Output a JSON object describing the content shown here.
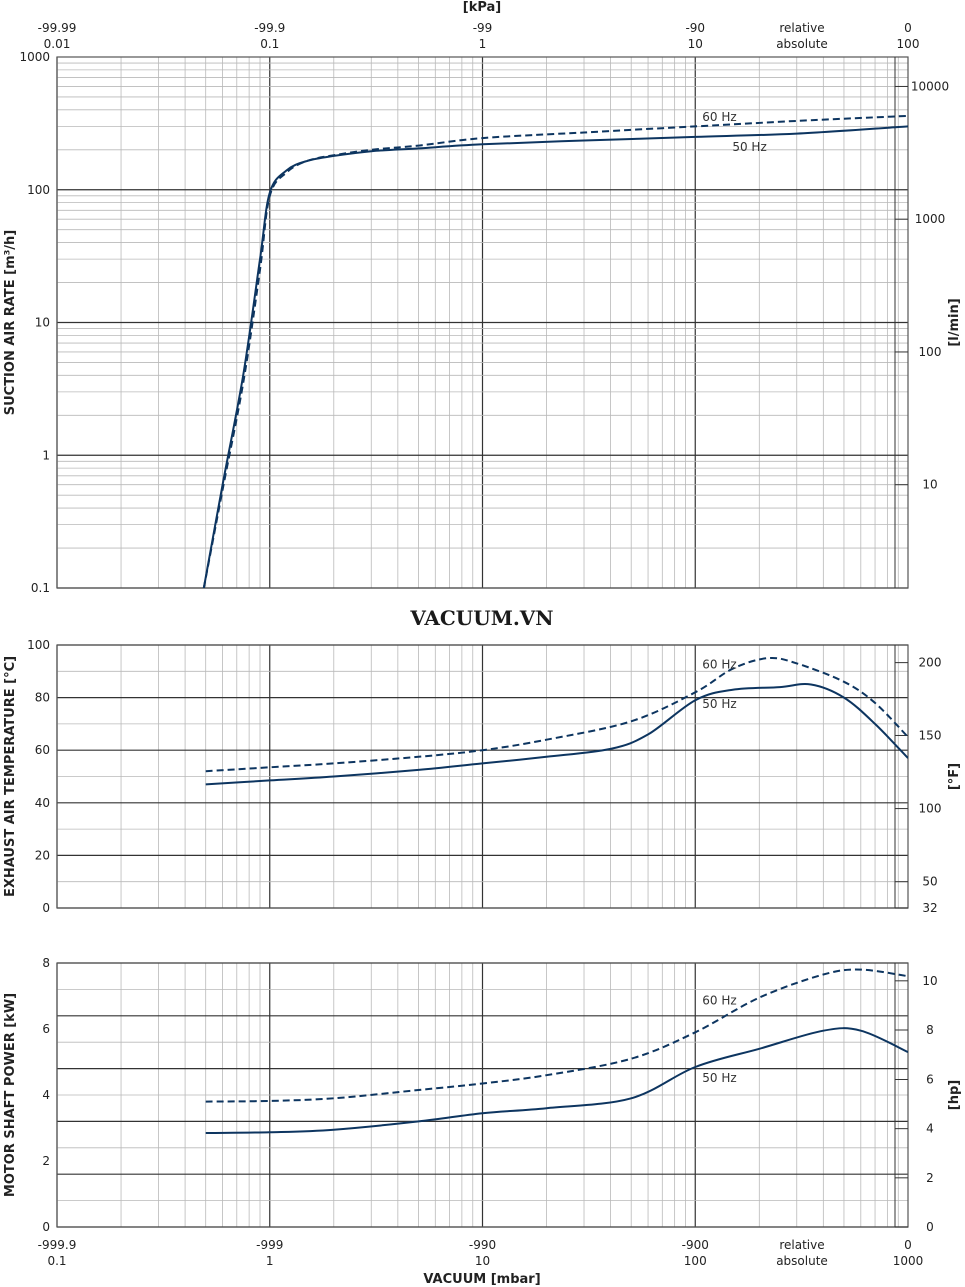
{
  "watermark": "VACUUM.VN",
  "colors": {
    "curve": "#0d3560",
    "grid_minor": "#b9b9b9",
    "grid_major": "#333333",
    "frame": "#555555"
  },
  "top_axis": {
    "unit": "[kPa]",
    "relative_ticks": [
      {
        "x": 0.01,
        "label": "-99.99"
      },
      {
        "x": 0.1,
        "label": "-99.9"
      },
      {
        "x": 1,
        "label": "-99"
      },
      {
        "x": 10,
        "label": "-90"
      },
      {
        "x": 100,
        "label": "0"
      }
    ],
    "absolute_ticks": [
      {
        "x": 0.01,
        "label": "0.01"
      },
      {
        "x": 0.1,
        "label": "0.1"
      },
      {
        "x": 1,
        "label": "1"
      },
      {
        "x": 10,
        "label": "10"
      },
      {
        "x": 100,
        "label": "100"
      }
    ],
    "relative_label": "relative",
    "absolute_label": "absolute"
  },
  "bottom_axis": {
    "title": "VACUUM [mbar]",
    "relative_ticks": [
      {
        "x": 0.1,
        "label": "-999.9"
      },
      {
        "x": 1,
        "label": "-999"
      },
      {
        "x": 10,
        "label": "-990"
      },
      {
        "x": 100,
        "label": "-900"
      },
      {
        "x": 1000,
        "label": "0"
      }
    ],
    "absolute_ticks": [
      {
        "x": 0.1,
        "label": "0.1"
      },
      {
        "x": 1,
        "label": "1"
      },
      {
        "x": 10,
        "label": "10"
      },
      {
        "x": 100,
        "label": "100"
      },
      {
        "x": 1000,
        "label": "1000"
      }
    ],
    "relative_label": "relative",
    "absolute_label": "absolute"
  },
  "chart_data": [
    {
      "type": "line",
      "id": "suction",
      "ylabel": "SUCTION AIR RATE [m³/h]",
      "ylabel_right": "[l/min]",
      "x_scale": "log",
      "y_scale": "log",
      "xlim": [
        0.1,
        1000
      ],
      "ylim": [
        0.1,
        1000
      ],
      "yticks": [
        {
          "v": 0.1,
          "label": "0.1"
        },
        {
          "v": 1,
          "label": "1"
        },
        {
          "v": 10,
          "label": "10"
        },
        {
          "v": 100,
          "label": "100"
        },
        {
          "v": 1000,
          "label": "1000"
        }
      ],
      "yticks_right": [
        {
          "v": 0.6,
          "label": "10"
        },
        {
          "v": 6,
          "label": "100"
        },
        {
          "v": 60,
          "label": "1000"
        },
        {
          "v": 600,
          "label": "10000"
        }
      ],
      "series": [
        {
          "name": "50 Hz",
          "style": "solid",
          "x": [
            0.49,
            0.6,
            0.75,
            0.9,
            1.0,
            1.2,
            1.5,
            2,
            3,
            5,
            10,
            30,
            100,
            300,
            1000
          ],
          "y": [
            0.1,
            0.6,
            4,
            30,
            95,
            140,
            165,
            180,
            195,
            205,
            220,
            235,
            250,
            265,
            300
          ],
          "label_at": {
            "x": 180,
            "y": 195
          }
        },
        {
          "name": "60 Hz",
          "style": "dashed",
          "x": [
            0.49,
            0.6,
            0.75,
            0.9,
            1.0,
            1.2,
            1.5,
            2,
            3,
            5,
            10,
            30,
            100,
            300,
            1000
          ],
          "y": [
            0.1,
            0.55,
            3.5,
            25,
            90,
            135,
            165,
            182,
            200,
            215,
            245,
            270,
            300,
            330,
            360
          ],
          "label_at": {
            "x": 130,
            "y": 330
          }
        }
      ]
    },
    {
      "type": "line",
      "id": "temperature",
      "ylabel": "EXHAUST AIR TEMPERATURE [°C]",
      "ylabel_right": "[°F]",
      "x_scale": "log",
      "y_scale": "linear",
      "xlim": [
        0.1,
        1000
      ],
      "ylim": [
        0,
        100
      ],
      "yticks": [
        {
          "v": 0,
          "label": "0"
        },
        {
          "v": 20,
          "label": "20"
        },
        {
          "v": 40,
          "label": "40"
        },
        {
          "v": 60,
          "label": "60"
        },
        {
          "v": 80,
          "label": "80"
        },
        {
          "v": 100,
          "label": "100"
        }
      ],
      "yticks_right": [
        {
          "v": 0,
          "label": "32"
        },
        {
          "v": 10,
          "label": "50"
        },
        {
          "v": 37.8,
          "label": "100"
        },
        {
          "v": 65.6,
          "label": "150"
        },
        {
          "v": 93.3,
          "label": "200"
        }
      ],
      "series": [
        {
          "name": "50 Hz",
          "style": "solid",
          "x": [
            0.5,
            1,
            2,
            5,
            10,
            20,
            40,
            60,
            100,
            150,
            250,
            350,
            500,
            700,
            1000
          ],
          "y": [
            47,
            48.5,
            50,
            52.5,
            55,
            57.5,
            60.5,
            66,
            79,
            83,
            84,
            85,
            80,
            70,
            57
          ],
          "label_at": {
            "x": 130,
            "y": 76
          }
        },
        {
          "name": "60 Hz",
          "style": "dashed",
          "x": [
            0.5,
            1,
            2,
            5,
            10,
            20,
            50,
            100,
            150,
            220,
            300,
            500,
            700,
            1000
          ],
          "y": [
            52,
            53.5,
            55,
            57.5,
            60,
            64,
            71,
            82,
            91,
            95,
            93,
            86,
            78,
            65
          ],
          "label_at": {
            "x": 130,
            "y": 91
          }
        }
      ]
    },
    {
      "type": "line",
      "id": "power",
      "ylabel": "MOTOR SHAFT POWER [kW]",
      "ylabel_right": "[hp]",
      "x_scale": "log",
      "y_scale": "linear",
      "xlim": [
        0.1,
        1000
      ],
      "ylim": [
        0,
        8
      ],
      "yticks": [
        {
          "v": 0,
          "label": "0"
        },
        {
          "v": 2,
          "label": "2"
        },
        {
          "v": 4,
          "label": "4"
        },
        {
          "v": 6,
          "label": "6"
        },
        {
          "v": 8,
          "label": "8"
        }
      ],
      "yticks_right": [
        {
          "v": 0,
          "label": "0"
        },
        {
          "v": 1.49,
          "label": "2"
        },
        {
          "v": 2.98,
          "label": "4"
        },
        {
          "v": 4.47,
          "label": "6"
        },
        {
          "v": 5.97,
          "label": "8"
        },
        {
          "v": 7.46,
          "label": "10"
        }
      ],
      "series": [
        {
          "name": "50 Hz",
          "style": "solid",
          "x": [
            0.5,
            1,
            2,
            5,
            10,
            20,
            50,
            100,
            200,
            400,
            600,
            1000
          ],
          "y": [
            2.85,
            2.87,
            2.95,
            3.2,
            3.45,
            3.6,
            3.9,
            4.85,
            5.4,
            5.95,
            5.95,
            5.3
          ],
          "label_at": {
            "x": 130,
            "y": 4.4
          }
        },
        {
          "name": "60 Hz",
          "style": "dashed",
          "x": [
            0.5,
            1,
            2,
            5,
            10,
            20,
            50,
            100,
            200,
            400,
            600,
            1000
          ],
          "y": [
            3.8,
            3.82,
            3.9,
            4.15,
            4.35,
            4.6,
            5.1,
            5.9,
            6.95,
            7.65,
            7.8,
            7.6
          ],
          "label_at": {
            "x": 130,
            "y": 6.75
          }
        }
      ]
    }
  ]
}
